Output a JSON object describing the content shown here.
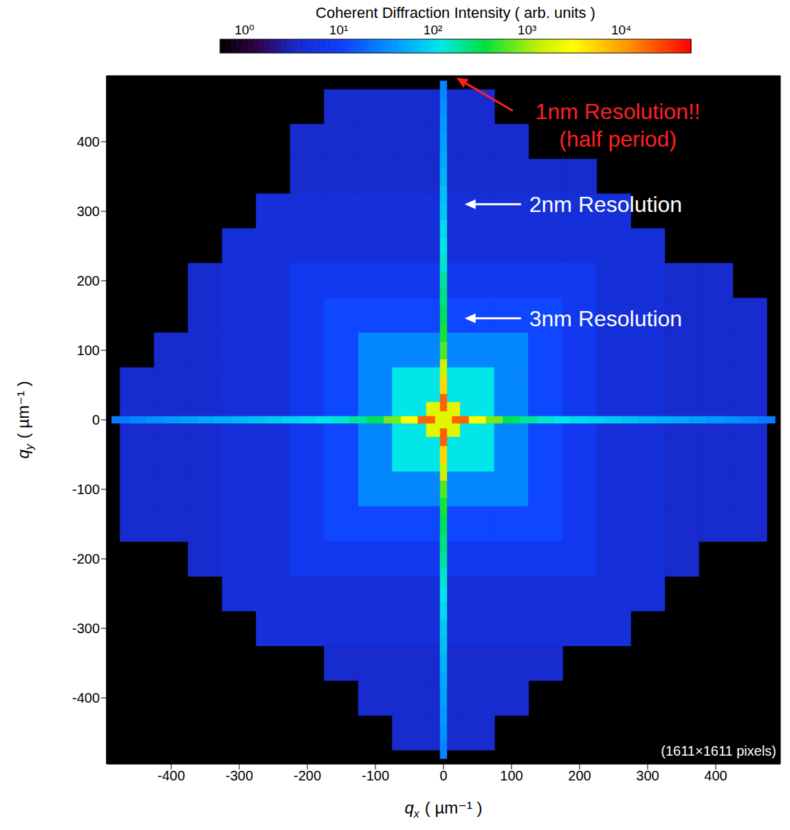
{
  "chart_data": {
    "type": "heatmap",
    "x_label": {
      "symbol": "q",
      "subscript": "x",
      "unit": "( µm⁻¹ )"
    },
    "y_label": {
      "symbol": "q",
      "subscript": "y",
      "unit": "( µm⁻¹ )"
    },
    "xlim": [
      -495,
      495
    ],
    "ylim": [
      -495,
      495
    ],
    "xticks": [
      -400,
      -300,
      -200,
      -100,
      0,
      100,
      200,
      300,
      400
    ],
    "yticks": [
      -400,
      -300,
      -200,
      -100,
      0,
      100,
      200,
      300,
      400
    ],
    "grid": false,
    "cells": {
      "x": [
        -450,
        -400,
        -350,
        -300,
        -250,
        -200,
        -150,
        -100,
        -50,
        0,
        50,
        100,
        150,
        200,
        250,
        300,
        350,
        400,
        450
      ],
      "y": [
        450,
        400,
        350,
        300,
        250,
        200,
        150,
        100,
        50,
        0,
        -50,
        -100,
        -150,
        -200,
        -250,
        -300,
        -350,
        -400,
        -450
      ],
      "values": [
        [
          null,
          null,
          null,
          null,
          null,
          null,
          4,
          4,
          4,
          4,
          4,
          null,
          null,
          null,
          null,
          null,
          null,
          null,
          null
        ],
        [
          null,
          null,
          null,
          null,
          null,
          4,
          4,
          4,
          4,
          4,
          4,
          4,
          null,
          null,
          null,
          null,
          null,
          null,
          null
        ],
        [
          null,
          null,
          null,
          null,
          null,
          4,
          4,
          4,
          4,
          4,
          4,
          4,
          4,
          4,
          null,
          null,
          null,
          null,
          null
        ],
        [
          null,
          null,
          null,
          null,
          5,
          5,
          5,
          5,
          5,
          5,
          5,
          5,
          5,
          5,
          5,
          null,
          null,
          null,
          null
        ],
        [
          null,
          null,
          null,
          5,
          5,
          5,
          5,
          5,
          5,
          5,
          5,
          5,
          5,
          5,
          5,
          5,
          null,
          null,
          null
        ],
        [
          null,
          null,
          4,
          5,
          5,
          8,
          8,
          8,
          8,
          8,
          8,
          8,
          8,
          8,
          5,
          5,
          4,
          4,
          null
        ],
        [
          null,
          null,
          4,
          5,
          5,
          8,
          12,
          12,
          12,
          12,
          12,
          12,
          12,
          8,
          5,
          5,
          4,
          4,
          4
        ],
        [
          null,
          4,
          4,
          5,
          5,
          8,
          12,
          30,
          30,
          30,
          30,
          30,
          12,
          8,
          5,
          5,
          4,
          4,
          4
        ],
        [
          4,
          4,
          4,
          5,
          5,
          8,
          12,
          30,
          120,
          120,
          120,
          30,
          12,
          8,
          5,
          5,
          4,
          4,
          4
        ],
        [
          4,
          4,
          4,
          5,
          5,
          8,
          12,
          30,
          120,
          2000,
          120,
          30,
          12,
          8,
          5,
          5,
          4,
          4,
          4
        ],
        [
          4,
          4,
          4,
          5,
          5,
          8,
          12,
          30,
          120,
          120,
          120,
          30,
          12,
          8,
          5,
          5,
          4,
          4,
          4
        ],
        [
          4,
          4,
          4,
          5,
          5,
          8,
          12,
          30,
          30,
          30,
          30,
          30,
          12,
          8,
          5,
          5,
          4,
          4,
          4
        ],
        [
          4,
          4,
          4,
          5,
          5,
          8,
          12,
          12,
          12,
          12,
          12,
          12,
          12,
          8,
          5,
          5,
          4,
          4,
          4
        ],
        [
          null,
          null,
          4,
          5,
          5,
          8,
          8,
          8,
          8,
          8,
          8,
          8,
          8,
          8,
          5,
          5,
          4,
          null,
          null
        ],
        [
          null,
          null,
          null,
          5,
          5,
          5,
          5,
          5,
          5,
          5,
          5,
          5,
          5,
          5,
          5,
          5,
          null,
          null,
          null
        ],
        [
          null,
          null,
          null,
          null,
          5,
          5,
          5,
          5,
          5,
          5,
          5,
          5,
          5,
          5,
          5,
          null,
          null,
          null,
          null
        ],
        [
          null,
          null,
          null,
          null,
          null,
          null,
          4,
          4,
          4,
          4,
          4,
          4,
          4,
          null,
          null,
          null,
          null,
          null,
          null
        ],
        [
          null,
          null,
          null,
          null,
          null,
          null,
          null,
          4,
          4,
          4,
          4,
          4,
          null,
          null,
          null,
          null,
          null,
          null,
          null
        ],
        [
          null,
          null,
          null,
          null,
          null,
          null,
          null,
          null,
          4,
          4,
          4,
          null,
          null,
          null,
          null,
          null,
          null,
          null,
          null
        ]
      ]
    },
    "streaks": {
      "q": [
        -475,
        -450,
        -425,
        -400,
        -375,
        -350,
        -325,
        -300,
        -275,
        -250,
        -225,
        -200,
        -175,
        -150,
        -125,
        -100,
        -75,
        -50,
        -25,
        0,
        25,
        50,
        75,
        100,
        125,
        150,
        175,
        200,
        225,
        250,
        275,
        300,
        325,
        350,
        375,
        400,
        425,
        450,
        475
      ],
      "along_qx": [
        25,
        30,
        35,
        40,
        45,
        50,
        55,
        60,
        70,
        80,
        90,
        100,
        120,
        150,
        200,
        300,
        800,
        3000,
        20000,
        null,
        20000,
        3000,
        800,
        300,
        200,
        150,
        120,
        100,
        90,
        80,
        70,
        60,
        55,
        50,
        45,
        40,
        35,
        30,
        25
      ],
      "along_qy": [
        30,
        35,
        40,
        45,
        50,
        60,
        70,
        80,
        100,
        120,
        150,
        200,
        250,
        300,
        400,
        600,
        1500,
        5000,
        20000,
        null,
        20000,
        5000,
        1500,
        600,
        400,
        300,
        250,
        200,
        150,
        120,
        100,
        80,
        70,
        60,
        50,
        45,
        40,
        35,
        30
      ]
    },
    "colorbar": {
      "title": "Coherent Diffraction Intensity ( arb. units )",
      "range": [
        0.55,
        55000
      ],
      "log": true,
      "ticks": [
        {
          "value": 1,
          "label": "10⁰"
        },
        {
          "value": 10,
          "label": "10¹"
        },
        {
          "value": 100,
          "label": "10²"
        },
        {
          "value": 1000,
          "label": "10³"
        },
        {
          "value": 10000,
          "label": "10⁴"
        }
      ]
    },
    "annotations": [
      {
        "text": [
          "1nm Resolution!!",
          "(half period)"
        ],
        "xy": [
          13,
          492
        ],
        "color": "#ff2020"
      },
      {
        "text": [
          "2nm Resolution"
        ],
        "xy": [
          25,
          310
        ],
        "color": "#ffffff"
      },
      {
        "text": [
          "3nm Resolution"
        ],
        "xy": [
          25,
          146
        ],
        "color": "#ffffff"
      }
    ],
    "note": "(1611×1611 pixels)"
  }
}
